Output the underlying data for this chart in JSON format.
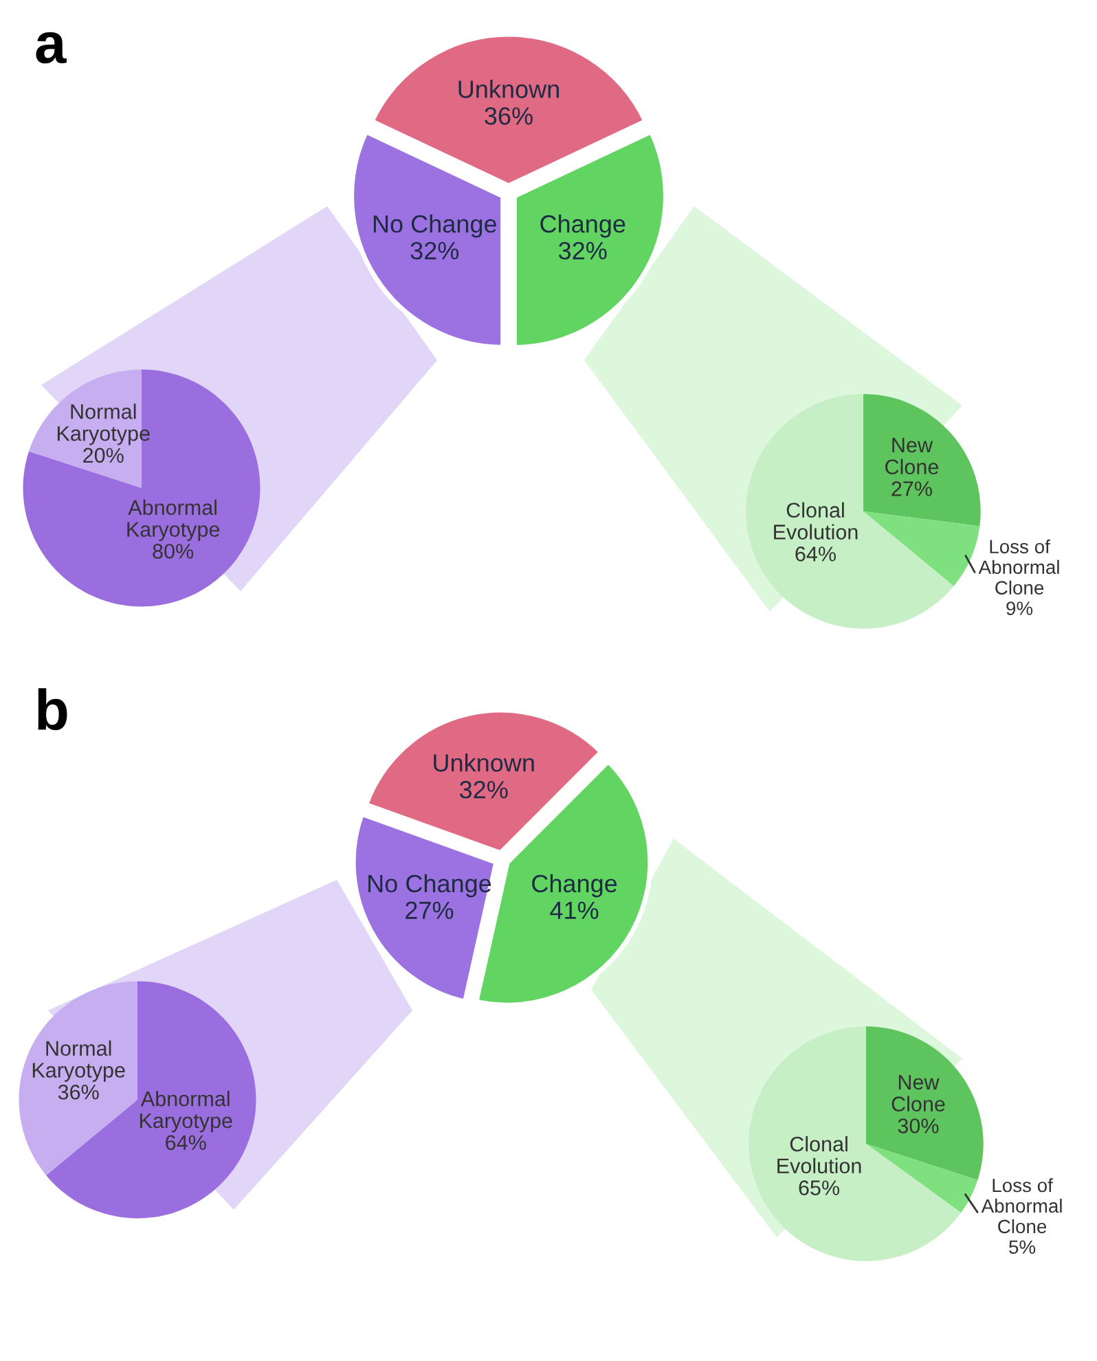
{
  "chart_data": [
    {
      "type": "pie",
      "title": "a",
      "categories": [
        "Unknown",
        "No Change",
        "Change"
      ],
      "values": [
        36,
        32,
        32
      ],
      "value_labels": [
        "36%",
        "32%",
        "32%"
      ],
      "colors": [
        "#e06a84",
        "#9c72e2",
        "#62d462"
      ]
    },
    {
      "type": "pie",
      "categories": [
        "Normal\nKaryotype",
        "Abnormal\nKaryotype"
      ],
      "values": [
        20,
        80
      ],
      "value_labels": [
        "20%",
        "80%"
      ],
      "colors": [
        "#c6aef0",
        "#9a6ede"
      ]
    },
    {
      "type": "pie",
      "categories": [
        "New\nClone",
        "Loss of\nAbnormal\nClone",
        "Clonal\nEvolution"
      ],
      "values": [
        27,
        9,
        64
      ],
      "value_labels": [
        "27%",
        "9%",
        "64%"
      ],
      "colors": [
        "#5ec45e",
        "#7fe07f",
        "#c6efc6"
      ]
    },
    {
      "type": "pie",
      "title": "b",
      "categories": [
        "Unknown",
        "No Change",
        "Change"
      ],
      "values": [
        32,
        27,
        41
      ],
      "value_labels": [
        "32%",
        "27%",
        "41%"
      ],
      "colors": [
        "#e06a84",
        "#9c72e2",
        "#62d462"
      ]
    },
    {
      "type": "pie",
      "categories": [
        "Normal\nKaryotype",
        "Abnormal\nKaryotype"
      ],
      "values": [
        36,
        64
      ],
      "value_labels": [
        "36%",
        "64%"
      ],
      "colors": [
        "#c6aef0",
        "#9a6ede"
      ]
    },
    {
      "type": "pie",
      "categories": [
        "New\nClone",
        "Loss of\nAbnormal\nClone",
        "Clonal\nEvolution"
      ],
      "values": [
        30,
        5,
        65
      ],
      "value_labels": [
        "30%",
        "5%",
        "65%"
      ],
      "colors": [
        "#5ec45e",
        "#7fe07f",
        "#c6efc6"
      ]
    }
  ]
}
